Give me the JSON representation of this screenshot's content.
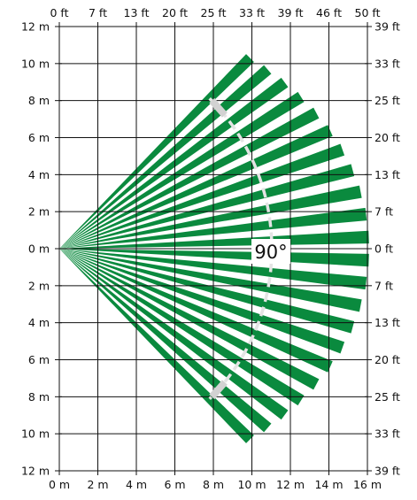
{
  "diagram": {
    "angle_label": "90°",
    "colors": {
      "beam": "#0a8a3e",
      "grid": "#111111",
      "arc": "#e4e4e4",
      "arc_marker": "#d2d2d2"
    },
    "beam_count": 22,
    "coverage_angle_deg": 90,
    "x_range_m": [
      0,
      16
    ],
    "y_range_m": [
      -12,
      12
    ],
    "axis_labels": {
      "top_ft": [
        "0 ft",
        "7 ft",
        "13 ft",
        "20 ft",
        "25 ft",
        "33 ft",
        "39 ft",
        "46 ft",
        "50 ft"
      ],
      "bottom_m": [
        "0 m",
        "2 m",
        "4 m",
        "6 m",
        "8 m",
        "10 m",
        "12 m",
        "14 m",
        "16 m"
      ],
      "left_m": [
        "12 m",
        "10 m",
        "8 m",
        "6 m",
        "4 m",
        "2 m",
        "0 m",
        "2 m",
        "4 m",
        "6 m",
        "8 m",
        "10 m",
        "12 m"
      ],
      "right_ft": [
        "39 ft",
        "33 ft",
        "25 ft",
        "20 ft",
        "13 ft",
        "7 ft",
        "0 ft",
        "7 ft",
        "13 ft",
        "20 ft",
        "25 ft",
        "33 ft",
        "39 ft"
      ]
    }
  }
}
